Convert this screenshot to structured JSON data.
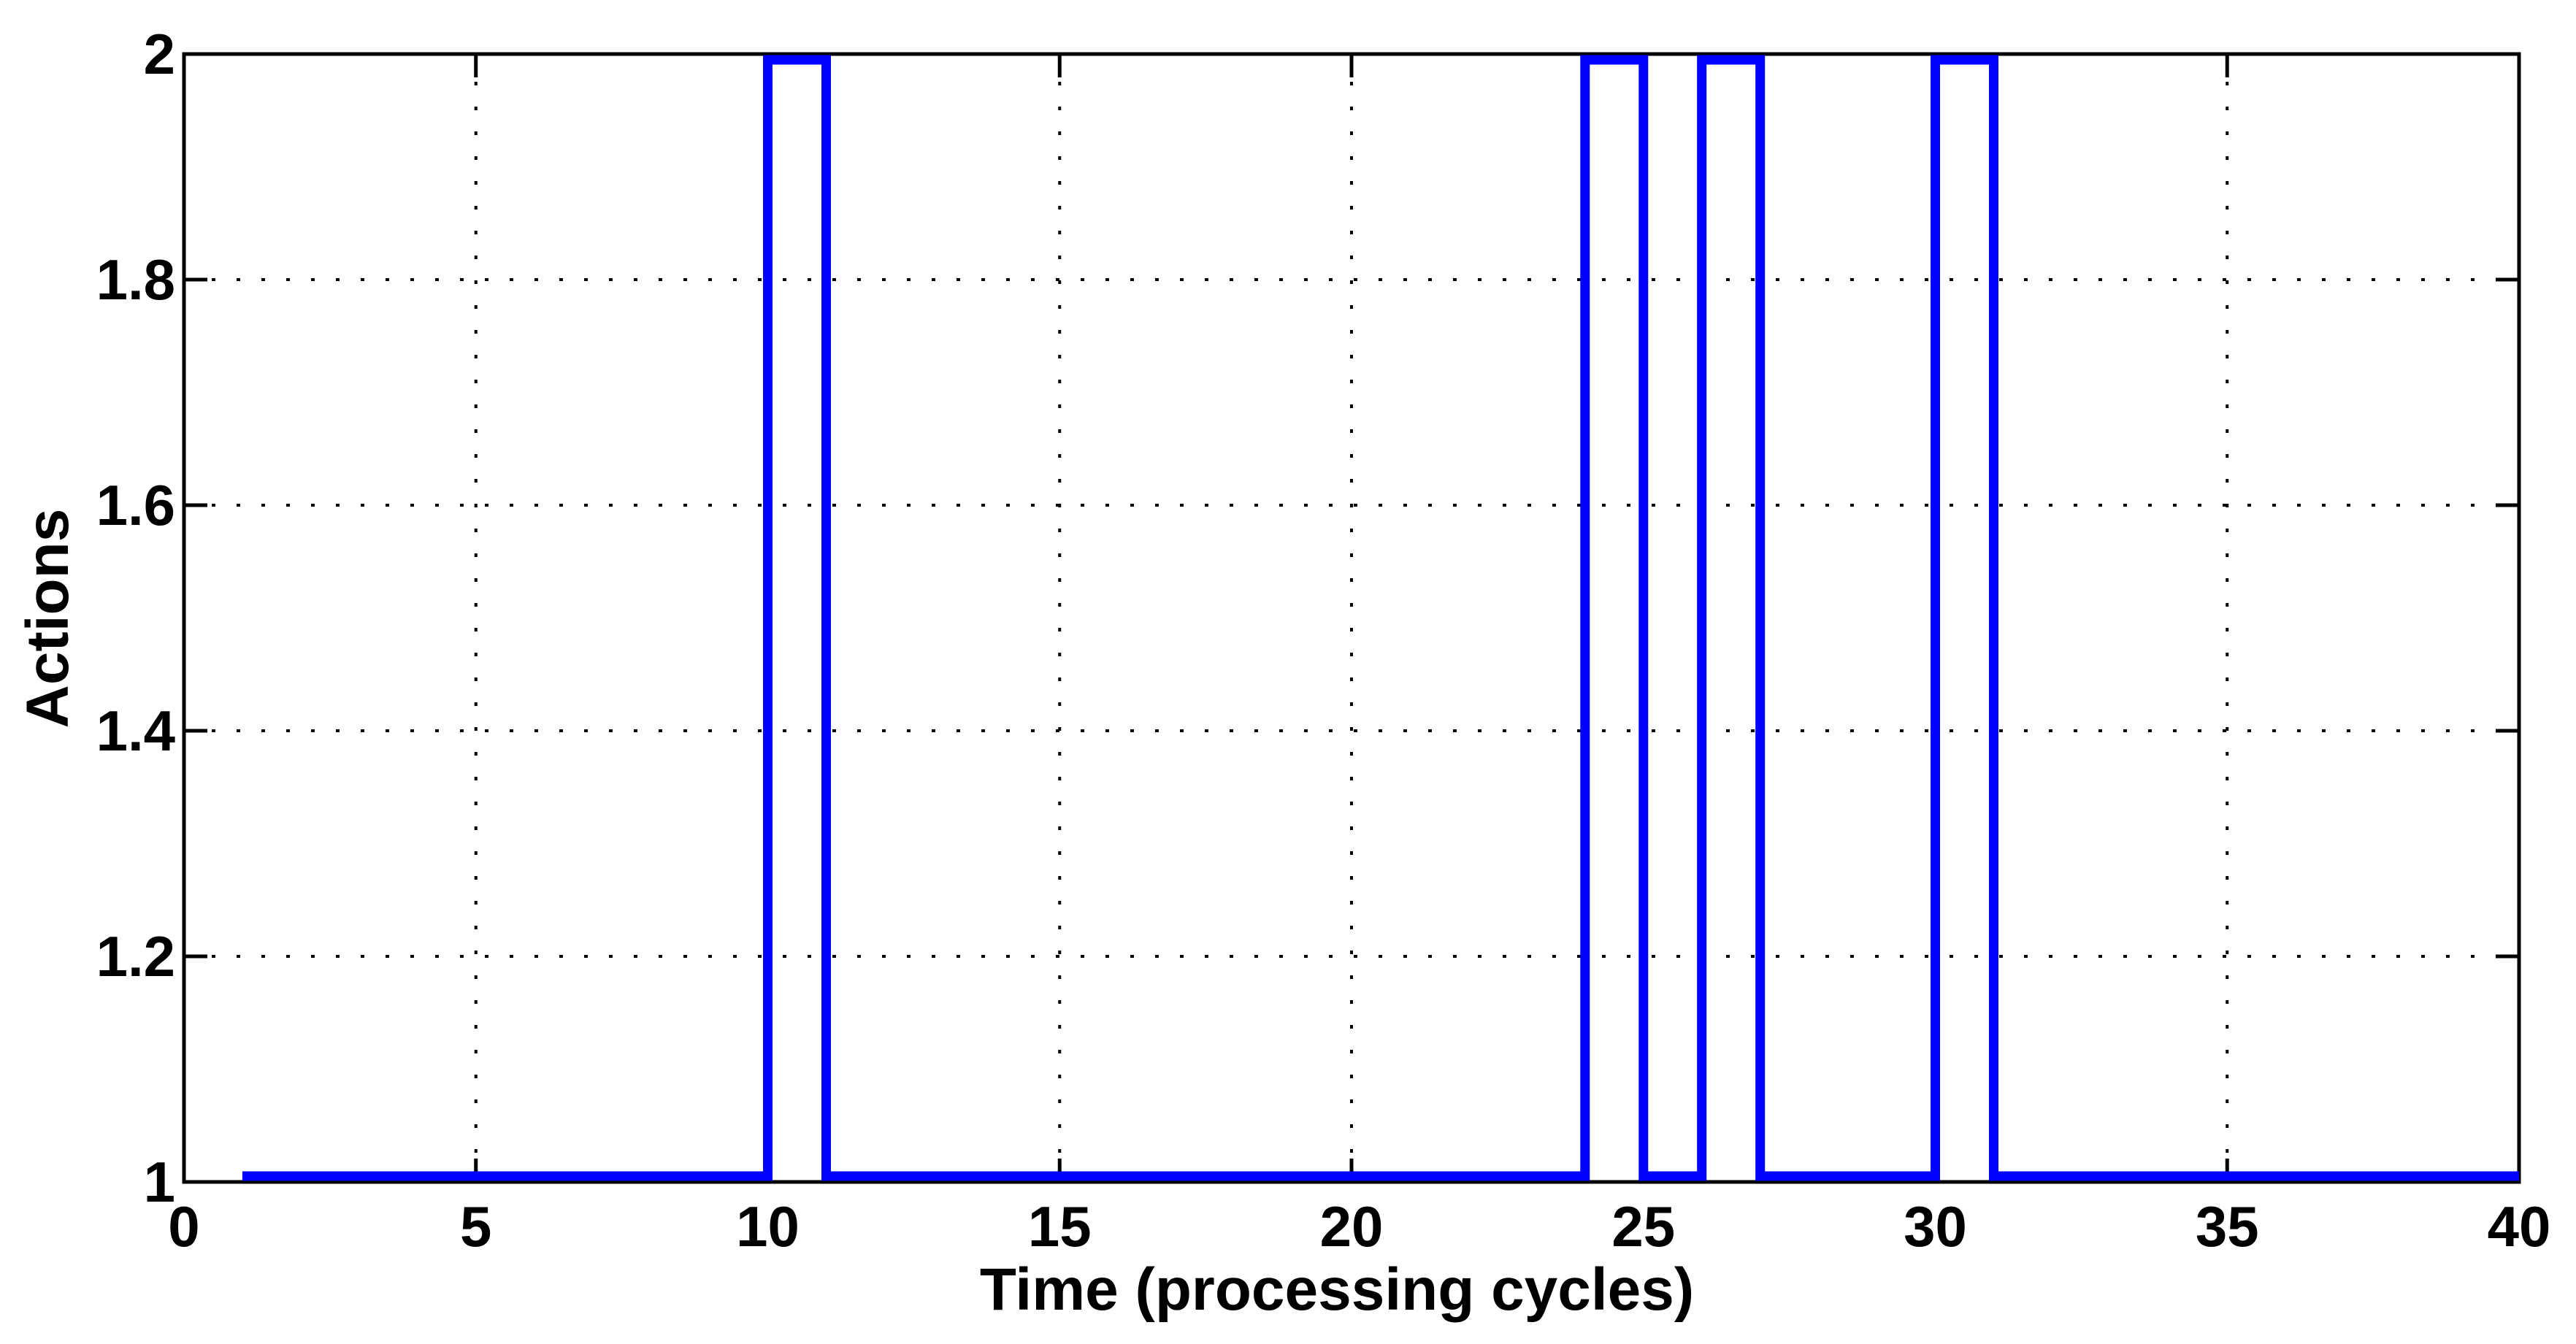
{
  "figure": {
    "background_color": "#FFFFFF"
  },
  "chart_data": {
    "type": "line",
    "subtype": "stairs",
    "title": "",
    "xlabel": "Time (processing cycles)",
    "ylabel": "Actions",
    "x": [
      1,
      2,
      3,
      4,
      5,
      6,
      7,
      8,
      9,
      10,
      11,
      12,
      13,
      14,
      15,
      16,
      17,
      18,
      19,
      20,
      21,
      22,
      23,
      24,
      25,
      26,
      27,
      28,
      29,
      30,
      31,
      32,
      33,
      34,
      35,
      36,
      37,
      38,
      39,
      40
    ],
    "y": [
      1,
      1,
      1,
      1,
      1,
      1,
      1,
      1,
      1,
      2,
      1,
      1,
      1,
      1,
      1,
      1,
      1,
      1,
      1,
      1,
      1,
      1,
      1,
      2,
      1,
      2,
      1,
      1,
      1,
      2,
      1,
      1,
      1,
      1,
      1,
      1,
      1,
      1,
      1,
      1
    ],
    "xlim": [
      0,
      40
    ],
    "ylim": [
      1,
      2
    ],
    "xticks": [
      0,
      5,
      10,
      15,
      20,
      25,
      30,
      35,
      40
    ],
    "xtick_labels": [
      "0",
      "5",
      "10",
      "15",
      "20",
      "25",
      "30",
      "35",
      "40"
    ],
    "yticks": [
      1,
      1.2,
      1.4,
      1.6,
      1.8,
      2
    ],
    "ytick_labels": [
      "1",
      "1.2",
      "1.4",
      "1.6",
      "1.8",
      "2"
    ],
    "grid": true,
    "grid_style": "dotted",
    "legend": null,
    "line_color": "#0000FF",
    "line_width": 13,
    "axis_color": "#000000",
    "grid_color": "#000000"
  }
}
